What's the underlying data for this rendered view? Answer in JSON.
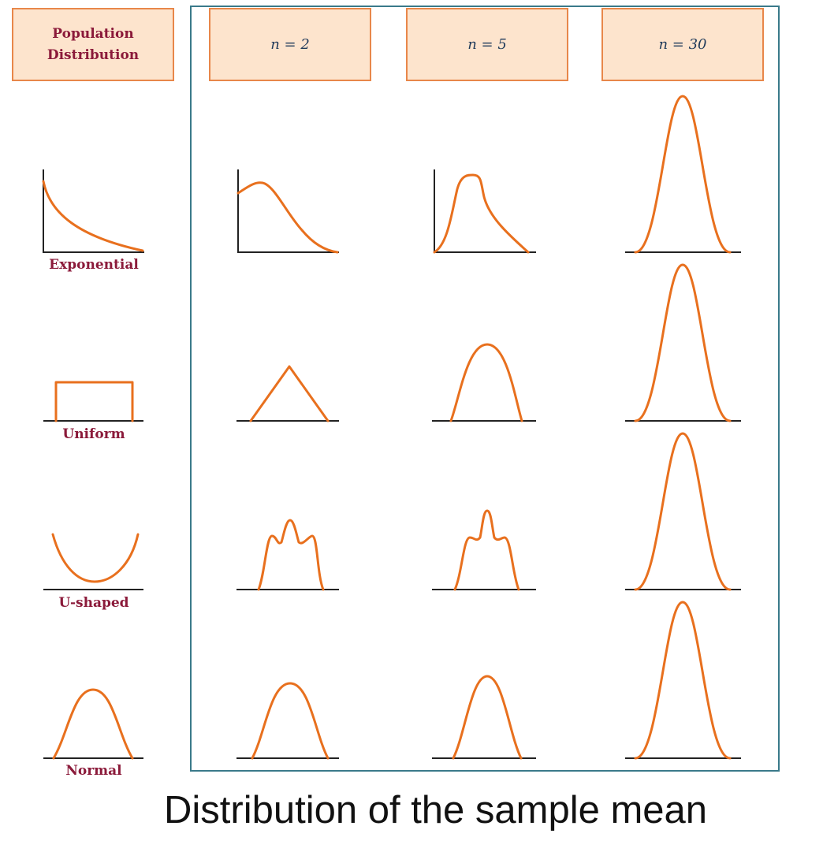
{
  "header": {
    "population": [
      "Population",
      "Distribution"
    ],
    "sample_sizes": [
      "n = 2",
      "n = 5",
      "n = 30"
    ]
  },
  "rows": [
    {
      "population": "Exponential"
    },
    {
      "population": "Uniform"
    },
    {
      "population": "U-shaped"
    },
    {
      "population": "Normal"
    }
  ],
  "caption": "Distribution of the sample mean",
  "colors": {
    "curve": "#e8701e",
    "box_fill": "#fde4cd",
    "box_border": "#e8874a",
    "frame": "#3a7a8a",
    "label": "#8b1a3a"
  }
}
